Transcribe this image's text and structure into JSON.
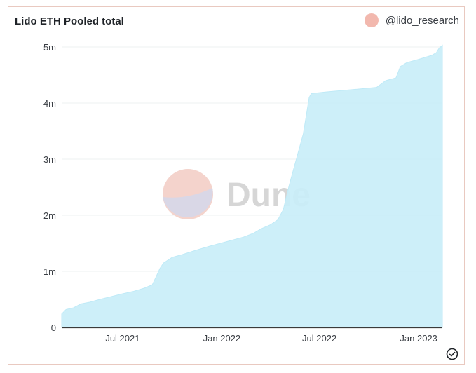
{
  "header": {
    "title": "Lido ETH Pooled total",
    "author": "@lido_research"
  },
  "watermark": {
    "text": "Dune"
  },
  "colors": {
    "area_fill": "#c9eef9",
    "area_stroke": "#bfeaf7",
    "grid": "#eef0f2",
    "axis": "#3a3a3a",
    "tick_text": "#3b3f45",
    "avatar": "#f2b8ae",
    "logo_top": "#f4d3cc",
    "logo_bottom": "#d9d7e6",
    "watermark_text": "#d6d6d6"
  },
  "icons": {
    "verified": "check-circle-icon",
    "author_avatar": "avatar-icon"
  },
  "chart_data": {
    "type": "area",
    "title": "Lido ETH Pooled total",
    "xlabel": "",
    "ylabel": "",
    "x_ticks": [
      "Jul 2021",
      "Jan 2022",
      "Jul 2022",
      "Jan 2023"
    ],
    "y_ticks": [
      "0",
      "1m",
      "2m",
      "3m",
      "4m",
      "5m"
    ],
    "ylim": [
      0,
      5000000
    ],
    "grid": true,
    "series": [
      {
        "values": [
          [
            "2021-03-10",
            240000
          ],
          [
            "2021-03-18",
            320000
          ],
          [
            "2021-04-01",
            350000
          ],
          [
            "2021-04-15",
            420000
          ],
          [
            "2021-05-01",
            450000
          ],
          [
            "2021-05-20",
            500000
          ],
          [
            "2021-06-10",
            550000
          ],
          [
            "2021-07-01",
            600000
          ],
          [
            "2021-07-20",
            640000
          ],
          [
            "2021-08-10",
            700000
          ],
          [
            "2021-08-25",
            760000
          ],
          [
            "2021-09-01",
            900000
          ],
          [
            "2021-09-08",
            1050000
          ],
          [
            "2021-09-15",
            1150000
          ],
          [
            "2021-10-01",
            1250000
          ],
          [
            "2021-10-20",
            1300000
          ],
          [
            "2021-11-15",
            1380000
          ],
          [
            "2021-12-10",
            1450000
          ],
          [
            "2022-01-10",
            1530000
          ],
          [
            "2022-02-10",
            1610000
          ],
          [
            "2022-03-01",
            1680000
          ],
          [
            "2022-03-15",
            1760000
          ],
          [
            "2022-04-01",
            1830000
          ],
          [
            "2022-04-15",
            1920000
          ],
          [
            "2022-04-25",
            2100000
          ],
          [
            "2022-05-05",
            2500000
          ],
          [
            "2022-05-12",
            2750000
          ],
          [
            "2022-05-22",
            3100000
          ],
          [
            "2022-06-01",
            3450000
          ],
          [
            "2022-06-07",
            3800000
          ],
          [
            "2022-06-12",
            4100000
          ],
          [
            "2022-06-16",
            4170000
          ],
          [
            "2022-07-15",
            4200000
          ],
          [
            "2022-09-01",
            4240000
          ],
          [
            "2022-10-15",
            4280000
          ],
          [
            "2022-11-01",
            4400000
          ],
          [
            "2022-11-20",
            4450000
          ],
          [
            "2022-11-28",
            4650000
          ],
          [
            "2022-12-10",
            4720000
          ],
          [
            "2023-01-01",
            4780000
          ],
          [
            "2023-01-25",
            4850000
          ],
          [
            "2023-02-03",
            4900000
          ],
          [
            "2023-02-08",
            4980000
          ],
          [
            "2023-02-14",
            5030000
          ]
        ]
      }
    ]
  }
}
